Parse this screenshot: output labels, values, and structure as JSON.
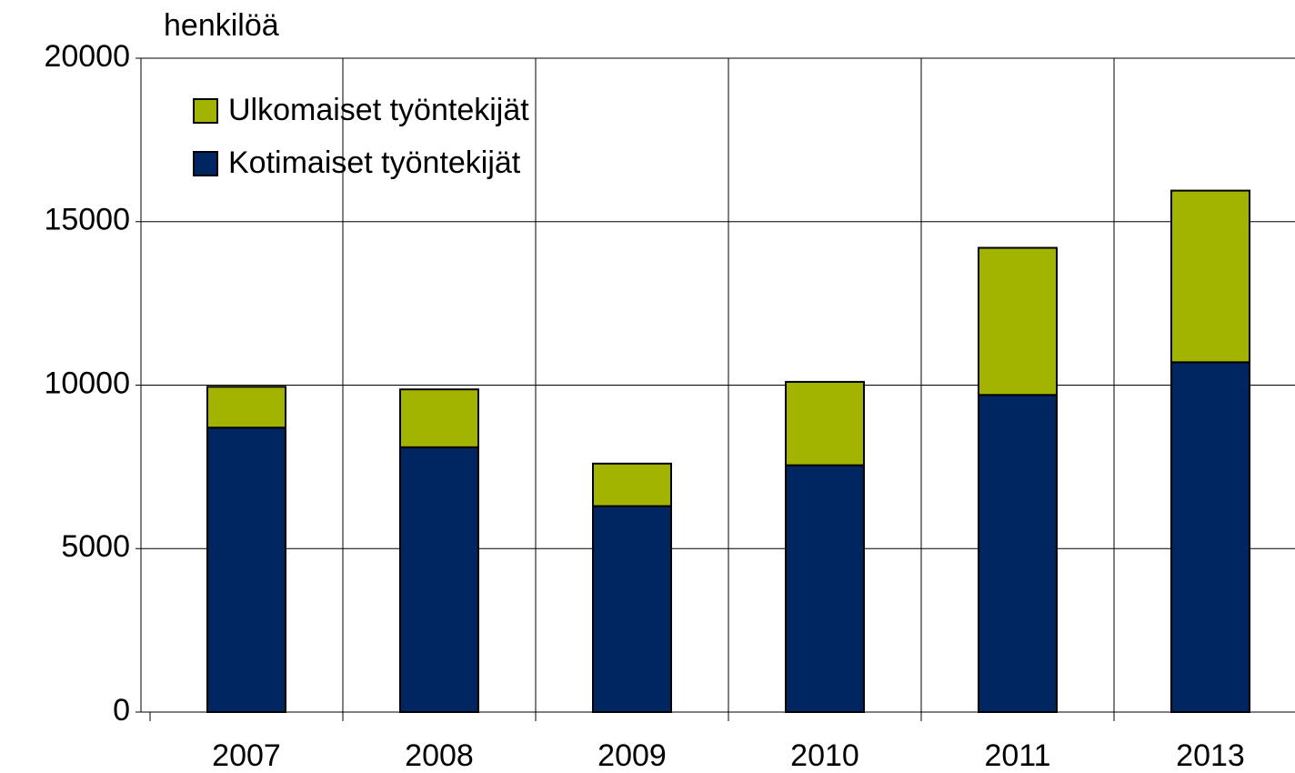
{
  "chart_data": {
    "type": "stacked_bar",
    "y_label": "henkilöä",
    "categories": [
      "2007",
      "2008",
      "2009",
      "2010",
      "2011",
      "2013"
    ],
    "series": [
      {
        "name": "Kotimaiset työntekijät",
        "color": "#002661",
        "values": [
          8700,
          8100,
          6300,
          7550,
          9700,
          10700
        ]
      },
      {
        "name": "Ulkomaiset työntekijät",
        "color": "#a2b400",
        "values": [
          1250,
          1770,
          1300,
          2550,
          4500,
          5250
        ]
      }
    ],
    "ylim": [
      0,
      20000
    ],
    "yticks": [
      0,
      5000,
      10000,
      15000,
      20000
    ],
    "grid": true,
    "legend": "upper left"
  }
}
